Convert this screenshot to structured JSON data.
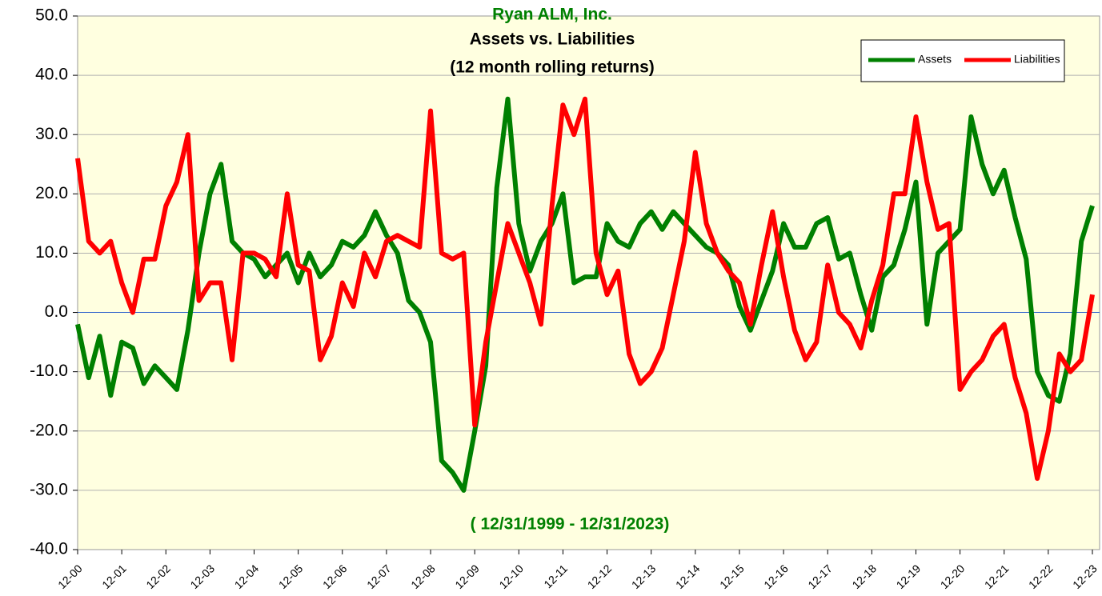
{
  "chart_data": {
    "type": "line",
    "title": "Ryan ALM, Inc.",
    "subtitle": "Assets vs. Liabilities",
    "subtitle2": "(12 month rolling returns)",
    "annotation": "( 12/31/1999 - 12/31/2023)",
    "categories": [
      "12-00",
      null,
      null,
      null,
      "12-01",
      null,
      null,
      null,
      "12-02",
      null,
      null,
      null,
      "12-03",
      null,
      null,
      null,
      "12-04",
      null,
      null,
      null,
      "12-05",
      null,
      null,
      null,
      "12-06",
      null,
      null,
      null,
      "12-07",
      null,
      null,
      null,
      "12-08",
      null,
      null,
      null,
      "12-09",
      null,
      null,
      null,
      "12-10",
      null,
      null,
      null,
      "12-11",
      null,
      null,
      null,
      "12-12",
      null,
      null,
      null,
      "12-13",
      null,
      null,
      null,
      "12-14",
      null,
      null,
      null,
      "12-15",
      null,
      null,
      null,
      "12-16",
      null,
      null,
      null,
      "12-17",
      null,
      null,
      null,
      "12-18",
      null,
      null,
      null,
      "12-19",
      null,
      null,
      null,
      "12-20",
      null,
      null,
      null,
      "12-21",
      null,
      null,
      null,
      "12-22",
      null,
      null,
      null,
      "12-23"
    ],
    "series": [
      {
        "name": "Assets",
        "color": "#008000",
        "values": [
          -2,
          -11,
          -4,
          -14,
          -5,
          -6,
          -12,
          -9,
          -11,
          -13,
          -3,
          10,
          20,
          25,
          12,
          10,
          9,
          6,
          8,
          10,
          5,
          10,
          6,
          8,
          12,
          11,
          13,
          17,
          13,
          10,
          2,
          0,
          -5,
          -25,
          -27,
          -30,
          -20,
          -9,
          21,
          36,
          15,
          7,
          12,
          15,
          20,
          5,
          6,
          6,
          15,
          12,
          11,
          15,
          17,
          14,
          17,
          15,
          13,
          11,
          10,
          8,
          1,
          -3,
          2,
          7,
          15,
          11,
          11,
          15,
          16,
          9,
          10,
          3,
          -3,
          6,
          8,
          14,
          22,
          -2,
          10,
          12,
          14,
          33,
          25,
          20,
          24,
          16,
          9,
          -10,
          -14,
          -15,
          -7,
          12,
          18
        ]
      },
      {
        "name": "Liabilities",
        "color": "#ff0000",
        "values": [
          26,
          12,
          10,
          12,
          5,
          0,
          9,
          9,
          18,
          22,
          30,
          2,
          5,
          5,
          -8,
          10,
          10,
          9,
          6,
          20,
          8,
          7,
          -8,
          -4,
          5,
          1,
          10,
          6,
          12,
          13,
          12,
          11,
          34,
          10,
          9,
          10,
          -19,
          -5,
          5,
          15,
          10,
          5,
          -2,
          18,
          35,
          30,
          36,
          10,
          3,
          7,
          -7,
          -12,
          -10,
          -6,
          3,
          12,
          27,
          15,
          10,
          7,
          5,
          -2,
          8,
          17,
          6,
          -3,
          -8,
          -5,
          8,
          0,
          -2,
          -6,
          2,
          8,
          20,
          20,
          33,
          22,
          14,
          15,
          -13,
          -10,
          -8,
          -4,
          -2,
          -11,
          -17,
          -28,
          -20,
          -7,
          -10,
          -8,
          3
        ]
      }
    ],
    "ylim": [
      -40,
      50
    ],
    "yticks": [
      {
        "value": -40,
        "label": "-40.0"
      },
      {
        "value": -30,
        "label": "-30.0"
      },
      {
        "value": -20,
        "label": "-20.0"
      },
      {
        "value": -10,
        "label": "-10.0"
      },
      {
        "value": 0,
        "label": "0.0"
      },
      {
        "value": 10,
        "label": "10.0"
      },
      {
        "value": 20,
        "label": "20.0"
      },
      {
        "value": 30,
        "label": "30.0"
      },
      {
        "value": 40,
        "label": "40.0"
      },
      {
        "value": 50,
        "label": "50.0"
      }
    ],
    "grid": true,
    "legend": "top-right"
  }
}
